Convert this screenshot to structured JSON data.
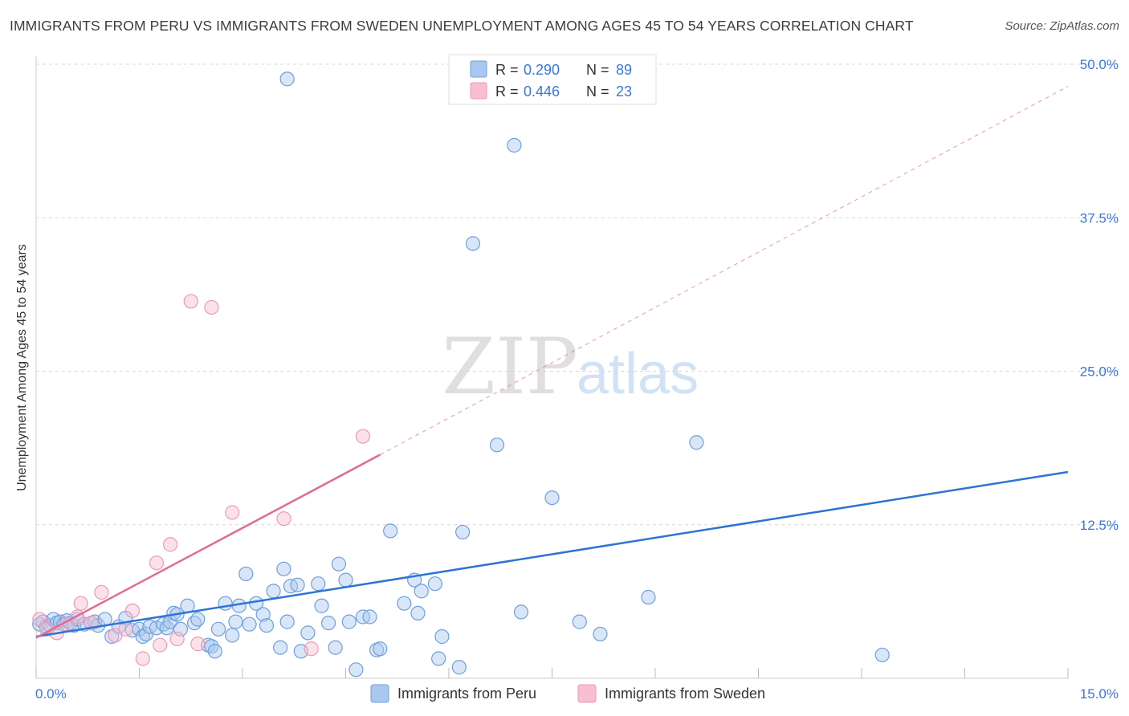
{
  "title": "IMMIGRANTS FROM PERU VS IMMIGRANTS FROM SWEDEN UNEMPLOYMENT AMONG AGES 45 TO 54 YEARS CORRELATION CHART",
  "source": "Source: ZipAtlas.com",
  "watermark": {
    "zip": "ZIP",
    "atlas": "atlas"
  },
  "colors": {
    "peru_fill": "#a9c8f0",
    "peru_stroke": "#6f9fdb",
    "peru_line": "#2c74d4",
    "sweden_fill": "#f7bfd1",
    "sweden_stroke": "#ec9ab5",
    "sweden_line": "#e06b94",
    "tick_label": "#3a78d8",
    "grid": "#d8d8d8"
  },
  "legend": {
    "rows": [
      {
        "r_label": "R = ",
        "r_value": "0.290",
        "n_label": "N = ",
        "n_value": "89",
        "series": "peru"
      },
      {
        "r_label": "R = ",
        "r_value": "0.446",
        "n_label": "N = ",
        "n_value": "23",
        "series": "sweden"
      }
    ]
  },
  "chart_data": {
    "type": "scatter",
    "title": "IMMIGRANTS FROM PERU VS IMMIGRANTS FROM SWEDEN UNEMPLOYMENT AMONG AGES 45 TO 54 YEARS CORRELATION CHART",
    "xlabel": "",
    "ylabel": "Unemployment Among Ages 45 to 54 years",
    "xlim": [
      0,
      15
    ],
    "ylim": [
      0,
      52
    ],
    "x_tick_labels": [
      "0.0%",
      "15.0%"
    ],
    "y_ticks": [
      12.5,
      25.0,
      37.5,
      50.0
    ],
    "y_tick_labels": [
      "12.5%",
      "25.0%",
      "37.5%",
      "50.0%"
    ],
    "grid": true,
    "legend_position": "bottom-center",
    "series": [
      {
        "name": "Immigrants from Peru",
        "key": "peru",
        "r": 0.29,
        "n": 89,
        "trend": {
          "x": [
            0.0,
            15.0
          ],
          "y": [
            3.4,
            16.8
          ],
          "style": "solid"
        },
        "points": [
          [
            0.05,
            4.4
          ],
          [
            0.1,
            4.6
          ],
          [
            0.15,
            4.2
          ],
          [
            0.2,
            4.3
          ],
          [
            0.25,
            4.8
          ],
          [
            0.3,
            4.5
          ],
          [
            0.35,
            4.6
          ],
          [
            0.4,
            4.4
          ],
          [
            0.45,
            4.7
          ],
          [
            0.5,
            4.5
          ],
          [
            0.55,
            4.3
          ],
          [
            0.6,
            4.8
          ],
          [
            0.7,
            4.4
          ],
          [
            0.8,
            4.5
          ],
          [
            0.85,
            4.6
          ],
          [
            0.9,
            4.3
          ],
          [
            1.0,
            4.8
          ],
          [
            1.1,
            3.4
          ],
          [
            1.2,
            4.2
          ],
          [
            1.3,
            4.9
          ],
          [
            1.4,
            3.9
          ],
          [
            1.5,
            4.0
          ],
          [
            1.55,
            3.4
          ],
          [
            1.6,
            3.6
          ],
          [
            1.65,
            4.2
          ],
          [
            1.75,
            4.1
          ],
          [
            1.85,
            4.4
          ],
          [
            1.9,
            4.1
          ],
          [
            1.95,
            4.6
          ],
          [
            2.0,
            5.3
          ],
          [
            2.05,
            5.2
          ],
          [
            2.1,
            4.0
          ],
          [
            2.2,
            5.9
          ],
          [
            2.3,
            4.5
          ],
          [
            2.35,
            4.8
          ],
          [
            2.5,
            2.7
          ],
          [
            2.55,
            2.6
          ],
          [
            2.6,
            2.2
          ],
          [
            2.65,
            4.0
          ],
          [
            2.75,
            6.1
          ],
          [
            2.85,
            3.5
          ],
          [
            2.9,
            4.6
          ],
          [
            2.95,
            5.9
          ],
          [
            3.05,
            8.5
          ],
          [
            3.1,
            4.4
          ],
          [
            3.2,
            6.1
          ],
          [
            3.3,
            5.2
          ],
          [
            3.35,
            4.3
          ],
          [
            3.45,
            7.1
          ],
          [
            3.55,
            2.5
          ],
          [
            3.6,
            8.9
          ],
          [
            3.65,
            4.6
          ],
          [
            3.7,
            7.5
          ],
          [
            3.8,
            7.6
          ],
          [
            3.85,
            2.2
          ],
          [
            3.95,
            3.7
          ],
          [
            4.1,
            7.7
          ],
          [
            4.15,
            5.9
          ],
          [
            4.25,
            4.5
          ],
          [
            4.35,
            2.5
          ],
          [
            4.4,
            9.3
          ],
          [
            4.5,
            8.0
          ],
          [
            4.55,
            4.6
          ],
          [
            4.65,
            0.7
          ],
          [
            4.75,
            5.0
          ],
          [
            4.85,
            5.0
          ],
          [
            4.95,
            2.3
          ],
          [
            5.0,
            2.4
          ],
          [
            3.65,
            48.8
          ],
          [
            5.15,
            12.0
          ],
          [
            5.35,
            6.1
          ],
          [
            5.5,
            8.0
          ],
          [
            5.55,
            5.3
          ],
          [
            5.6,
            7.1
          ],
          [
            5.8,
            7.7
          ],
          [
            5.85,
            1.6
          ],
          [
            5.9,
            3.4
          ],
          [
            6.15,
            0.9
          ],
          [
            6.2,
            11.9
          ],
          [
            6.35,
            35.4
          ],
          [
            6.7,
            19.0
          ],
          [
            6.95,
            43.4
          ],
          [
            7.05,
            5.4
          ],
          [
            7.5,
            14.7
          ],
          [
            7.9,
            4.6
          ],
          [
            8.2,
            3.6
          ],
          [
            8.9,
            6.6
          ],
          [
            9.6,
            19.2
          ],
          [
            12.3,
            1.9
          ]
        ]
      },
      {
        "name": "Immigrants from Sweden",
        "key": "sweden",
        "r": 0.446,
        "n": 23,
        "trend": {
          "x": [
            0.0,
            5.0
          ],
          "y": [
            3.3,
            18.2
          ],
          "style": "solid"
        },
        "trend_extension": {
          "x": [
            5.0,
            15.0
          ],
          "y": [
            18.2,
            48.2
          ],
          "style": "dashed"
        },
        "points": [
          [
            0.05,
            4.8
          ],
          [
            0.15,
            4.0
          ],
          [
            0.3,
            3.7
          ],
          [
            0.45,
            4.4
          ],
          [
            0.6,
            5.0
          ],
          [
            0.65,
            6.1
          ],
          [
            0.8,
            4.5
          ],
          [
            0.95,
            7.0
          ],
          [
            1.15,
            3.5
          ],
          [
            1.3,
            4.0
          ],
          [
            1.4,
            5.5
          ],
          [
            1.55,
            1.6
          ],
          [
            1.75,
            9.4
          ],
          [
            1.8,
            2.7
          ],
          [
            1.95,
            10.9
          ],
          [
            2.05,
            3.2
          ],
          [
            2.25,
            30.7
          ],
          [
            2.35,
            2.8
          ],
          [
            2.55,
            30.2
          ],
          [
            2.85,
            13.5
          ],
          [
            3.6,
            13.0
          ],
          [
            4.0,
            2.4
          ],
          [
            4.75,
            19.7
          ]
        ]
      }
    ]
  }
}
